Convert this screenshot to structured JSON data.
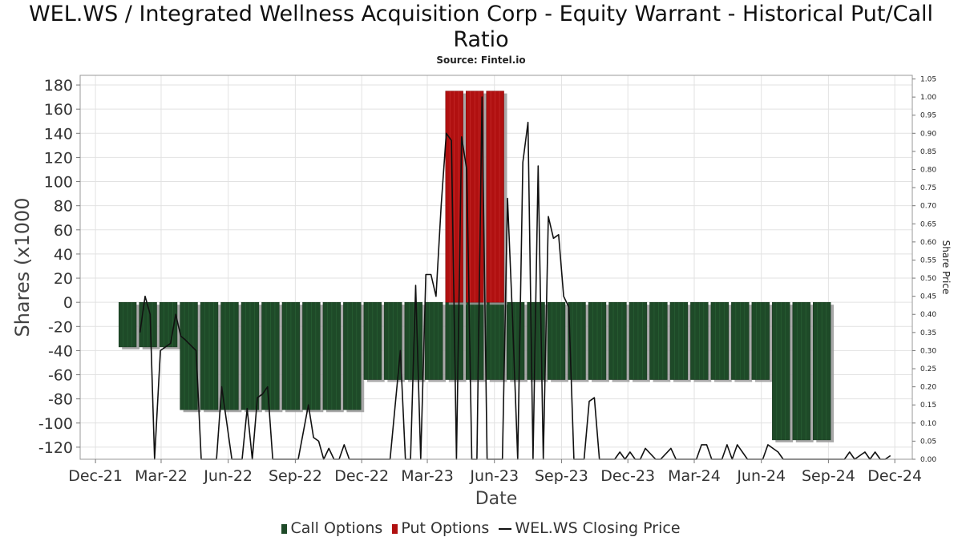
{
  "chart_data": {
    "type": "bar",
    "title": "WEL.WS / Integrated Wellness Acquisition Corp - Equity Warrant - Historical Put/Call Ratio",
    "subtitle": "Source: Fintel.io",
    "xlabel": "Date",
    "ylabel": "Shares (x1000",
    "y2label": "Share Price",
    "ylim": [
      -130,
      188
    ],
    "y2lim": [
      0,
      1.06
    ],
    "yticks": [
      -120,
      -100,
      -80,
      -60,
      -40,
      -20,
      0,
      20,
      40,
      60,
      80,
      100,
      120,
      140,
      160,
      180
    ],
    "y2ticks": [
      "0.00",
      "0.05",
      "0.10",
      "0.15",
      "0.20",
      "0.25",
      "0.30",
      "0.35",
      "0.40",
      "0.45",
      "0.50",
      "0.55",
      "0.60",
      "0.65",
      "0.70",
      "0.75",
      "0.80",
      "0.85",
      "0.90",
      "0.95",
      "1.00",
      "1.05"
    ],
    "xlim": [
      "2021-11-10",
      "2024-12-25"
    ],
    "xticks": [
      {
        "label": "Dec-21",
        "date": "2021-12-01"
      },
      {
        "label": "Mar-22",
        "date": "2022-03-01"
      },
      {
        "label": "Jun-22",
        "date": "2022-06-01"
      },
      {
        "label": "Sep-22",
        "date": "2022-09-01"
      },
      {
        "label": "Dec-22",
        "date": "2022-12-01"
      },
      {
        "label": "Mar-23",
        "date": "2023-03-01"
      },
      {
        "label": "Jun-23",
        "date": "2023-06-01"
      },
      {
        "label": "Sep-23",
        "date": "2023-09-01"
      },
      {
        "label": "Dec-23",
        "date": "2023-12-01"
      },
      {
        "label": "Mar-24",
        "date": "2024-03-01"
      },
      {
        "label": "Jun-24",
        "date": "2024-06-01"
      },
      {
        "label": "Sep-24",
        "date": "2024-09-01"
      },
      {
        "label": "Dec-24",
        "date": "2024-12-01"
      }
    ],
    "grid": true,
    "legend_position": "bottom",
    "colors": {
      "call": "#1e4a28",
      "put": "#b01010",
      "price": "#111111"
    },
    "series": [
      {
        "name": "Call Options",
        "kind": "bar",
        "dates": [
          "2022-01-14",
          "2022-02-11",
          "2022-03-11",
          "2022-04-08",
          "2022-05-06",
          "2022-06-03",
          "2022-07-01",
          "2022-07-29",
          "2022-08-26",
          "2022-09-23",
          "2022-10-21",
          "2022-11-18",
          "2022-12-16",
          "2023-01-13",
          "2023-02-10",
          "2023-03-10",
          "2023-04-07",
          "2023-05-05",
          "2023-06-02",
          "2023-06-30",
          "2023-07-28",
          "2023-08-25",
          "2023-09-22",
          "2023-10-20",
          "2023-11-17",
          "2023-12-15",
          "2024-01-12",
          "2024-02-09",
          "2024-03-08",
          "2024-04-05",
          "2024-05-03",
          "2024-05-31",
          "2024-06-28",
          "2024-07-26",
          "2024-08-23"
        ],
        "values": [
          -37,
          -37,
          -37,
          -89,
          -89,
          -89,
          -89,
          -89,
          -89,
          -89,
          -89,
          -89,
          -64,
          -64,
          -64,
          -64,
          -64,
          -64,
          -64,
          -64,
          -64,
          -64,
          -64,
          -64,
          -64,
          -64,
          -64,
          -64,
          -64,
          -64,
          -64,
          -64,
          -114,
          -114,
          -114
        ]
      },
      {
        "name": "Put Options",
        "kind": "bar",
        "dates": [
          "2023-04-07",
          "2023-05-05",
          "2023-06-02"
        ],
        "values": [
          175,
          175,
          175
        ]
      },
      {
        "name": "WEL.WS Closing Price",
        "kind": "line",
        "dates": [
          "2022-01-31",
          "2022-02-07",
          "2022-02-14",
          "2022-02-20",
          "2022-02-28",
          "2022-03-07",
          "2022-03-14",
          "2022-03-21",
          "2022-03-28",
          "2022-04-03",
          "2022-04-18",
          "2022-04-25",
          "2022-05-16",
          "2022-05-23",
          "2022-05-30",
          "2022-06-06",
          "2022-06-13",
          "2022-06-20",
          "2022-06-27",
          "2022-07-04",
          "2022-07-11",
          "2022-07-18",
          "2022-07-25",
          "2022-08-01",
          "2022-08-08",
          "2022-08-15",
          "2022-08-22",
          "2022-09-05",
          "2022-09-19",
          "2022-09-26",
          "2022-10-03",
          "2022-10-10",
          "2022-10-17",
          "2022-10-24",
          "2022-10-31",
          "2022-11-07",
          "2022-11-14",
          "2022-11-21",
          "2022-11-28",
          "2022-12-05",
          "2022-12-12",
          "2023-01-09",
          "2023-01-23",
          "2023-01-30",
          "2023-02-06",
          "2023-02-13",
          "2023-02-20",
          "2023-02-27",
          "2023-03-06",
          "2023-03-13",
          "2023-03-20",
          "2023-03-27",
          "2023-04-03",
          "2023-04-10",
          "2023-04-17",
          "2023-04-24",
          "2023-05-01",
          "2023-05-08",
          "2023-05-15",
          "2023-05-22",
          "2023-05-29",
          "2023-06-05",
          "2023-06-12",
          "2023-06-19",
          "2023-06-26",
          "2023-07-03",
          "2023-07-10",
          "2023-07-17",
          "2023-07-24",
          "2023-07-31",
          "2023-08-07",
          "2023-08-14",
          "2023-08-21",
          "2023-08-28",
          "2023-09-04",
          "2023-09-11",
          "2023-09-18",
          "2023-09-25",
          "2023-10-02",
          "2023-10-09",
          "2023-10-16",
          "2023-10-23",
          "2023-10-30",
          "2023-11-13",
          "2023-11-20",
          "2023-11-27",
          "2023-12-04",
          "2023-12-11",
          "2023-12-18",
          "2023-12-25",
          "2024-01-08",
          "2024-01-15",
          "2024-01-29",
          "2024-02-05",
          "2024-02-12",
          "2024-02-26",
          "2024-03-04",
          "2024-03-11",
          "2024-03-18",
          "2024-03-25",
          "2024-04-08",
          "2024-04-15",
          "2024-04-22",
          "2024-04-29",
          "2024-05-13",
          "2024-05-20",
          "2024-06-03",
          "2024-06-10",
          "2024-06-24",
          "2024-07-01",
          "2024-09-23",
          "2024-09-30",
          "2024-10-07",
          "2024-10-21",
          "2024-10-28",
          "2024-11-04",
          "2024-11-11",
          "2024-11-18",
          "2024-11-25"
        ],
        "values": [
          0.35,
          0.45,
          0.4,
          0.0,
          0.3,
          0.31,
          0.32,
          0.4,
          0.34,
          0.33,
          0.3,
          0.0,
          0.0,
          0.2,
          0.1,
          0.0,
          0.0,
          0.0,
          0.14,
          0.0,
          0.17,
          0.18,
          0.2,
          0.0,
          0.0,
          0.0,
          0.0,
          0.0,
          0.15,
          0.06,
          0.05,
          0.0,
          0.03,
          0.0,
          0.0,
          0.04,
          0.0,
          0.0,
          0.0,
          0.0,
          0.0,
          0.0,
          0.3,
          0.0,
          0.0,
          0.48,
          0.0,
          0.51,
          0.51,
          0.45,
          0.7,
          0.9,
          0.88,
          0.0,
          0.89,
          0.8,
          0.0,
          0.0,
          1.0,
          0.0,
          0.0,
          0.0,
          0.0,
          0.72,
          0.38,
          0.0,
          0.82,
          0.93,
          0.0,
          0.81,
          0.0,
          0.67,
          0.61,
          0.62,
          0.45,
          0.42,
          0.0,
          0.0,
          0.0,
          0.16,
          0.17,
          0.0,
          0.0,
          0.0,
          0.02,
          0.0,
          0.02,
          0.0,
          0.0,
          0.03,
          0.0,
          0.0,
          0.03,
          0.0,
          0.0,
          0.0,
          0.0,
          0.04,
          0.04,
          0.0,
          0.0,
          0.04,
          0.0,
          0.04,
          0.0,
          0.0,
          0.0,
          0.04,
          0.02,
          0.0,
          0.0,
          0.02,
          0.0,
          0.02,
          0.0,
          0.02,
          0.0,
          0.0,
          0.01
        ]
      }
    ]
  },
  "legend": {
    "call_label": "Call Options",
    "put_label": "Put Options",
    "price_label": "WEL.WS Closing Price"
  }
}
